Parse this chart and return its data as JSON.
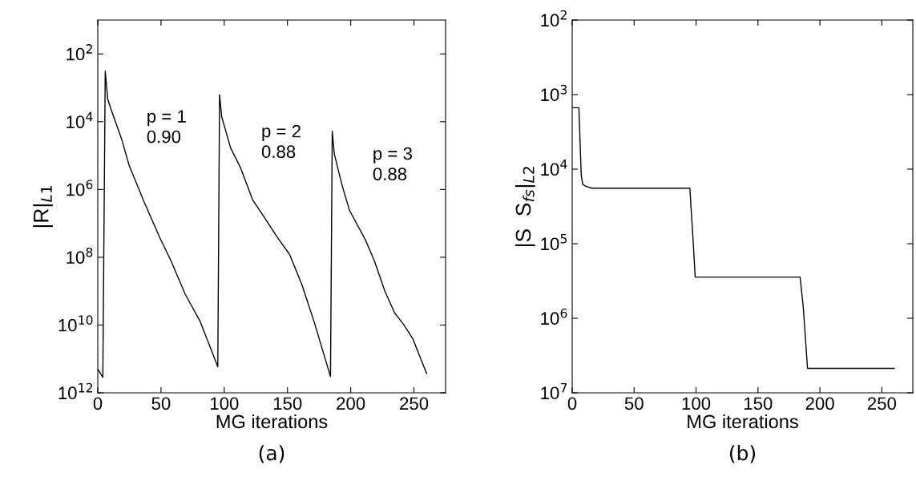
{
  "chart_data": [
    {
      "type": "line",
      "xlabel": "MG iterations",
      "ylabel": "|R|$_{L1}$",
      "log": "y",
      "xlim": [
        0,
        275
      ],
      "ylim": [
        1000000000000.0,
        10
      ],
      "xticks": [
        0,
        50,
        100,
        150,
        200,
        250
      ],
      "yticks": [
        {
          "value": 100,
          "label": "10$^{2}$"
        },
        {
          "value": 10000,
          "label": "10$^{4}$"
        },
        {
          "value": 1000000.0,
          "label": "10$^{6}$"
        },
        {
          "value": 100000000.0,
          "label": "10$^{8}$"
        },
        {
          "value": 10000000000.0,
          "label": "10$^{10}$"
        },
        {
          "value": 1000000000000.0,
          "label": "10$^{12}$"
        }
      ],
      "series": [
        {
          "color": "#000000",
          "x": [
            0,
            4,
            5.9,
            7.8,
            10.2,
            18.8,
            24.9,
            37,
            49,
            58,
            69,
            81,
            94.9,
            96.3,
            98,
            105,
            112.7,
            122.4,
            132,
            142,
            151.7,
            161.5,
            171,
            184,
            185.4,
            187,
            193,
            199,
            211.5,
            218.8,
            227,
            234.6,
            242,
            249,
            260
          ],
          "values": [
            200000000000.0,
            350000000000.0,
            320,
            2100,
            4000,
            32000.0,
            200000.0,
            2500000.0,
            26000000.0,
            130000000.0,
            1200000000.0,
            7900000000.0,
            170000000000.0,
            1600,
            7200,
            59000.0,
            220000.0,
            2000000.0,
            6900000.0,
            26000000.0,
            83000000.0,
            660000000.0,
            7900000000.0,
            330000000000.0,
            19000.0,
            89000.0,
            710000.0,
            4100000.0,
            30000000.0,
            130000000.0,
            1000000000.0,
            4300000000.0,
            9800000000.0,
            25000000000.0,
            270000000000.0
          ]
        }
      ],
      "annotations": [
        "p = 1\n0.90",
        "p = 2\n0.88",
        "p = 3\n0.88",
        "(a)"
      ]
    },
    {
      "type": "line",
      "xlabel": "MG iterations",
      "ylabel": "|S  S$_{fs}$|$_{L2}$",
      "log": "y",
      "xlim": [
        0,
        275
      ],
      "ylim": [
        10000000.0,
        100
      ],
      "xticks": [
        0,
        50,
        100,
        150,
        200,
        250
      ],
      "yticks": [
        {
          "value": 100,
          "label": "10$^{2}$"
        },
        {
          "value": 1000,
          "label": "10$^{3}$"
        },
        {
          "value": 10000,
          "label": "10$^{4}$"
        },
        {
          "value": 100000.0,
          "label": "10$^{5}$"
        },
        {
          "value": 1000000.0,
          "label": "10$^{6}$"
        },
        {
          "value": 10000000.0,
          "label": "10$^{7}$"
        }
      ],
      "series": [
        {
          "color": "#000000",
          "x": [
            0,
            5.4,
            7.3,
            8.5,
            11,
            16,
            95,
            97.6,
            99.3,
            102.4,
            105,
            184,
            186.6,
            190,
            260
          ],
          "values": [
            1500,
            1500,
            12000.0,
            16000.0,
            17000.0,
            18000.0,
            18000.0,
            89000.0,
            280000.0,
            280000.0,
            280000.0,
            280000.0,
            720000.0,
            4700000.0,
            4700000.0
          ]
        }
      ],
      "annotations": [
        "(b)"
      ]
    }
  ]
}
